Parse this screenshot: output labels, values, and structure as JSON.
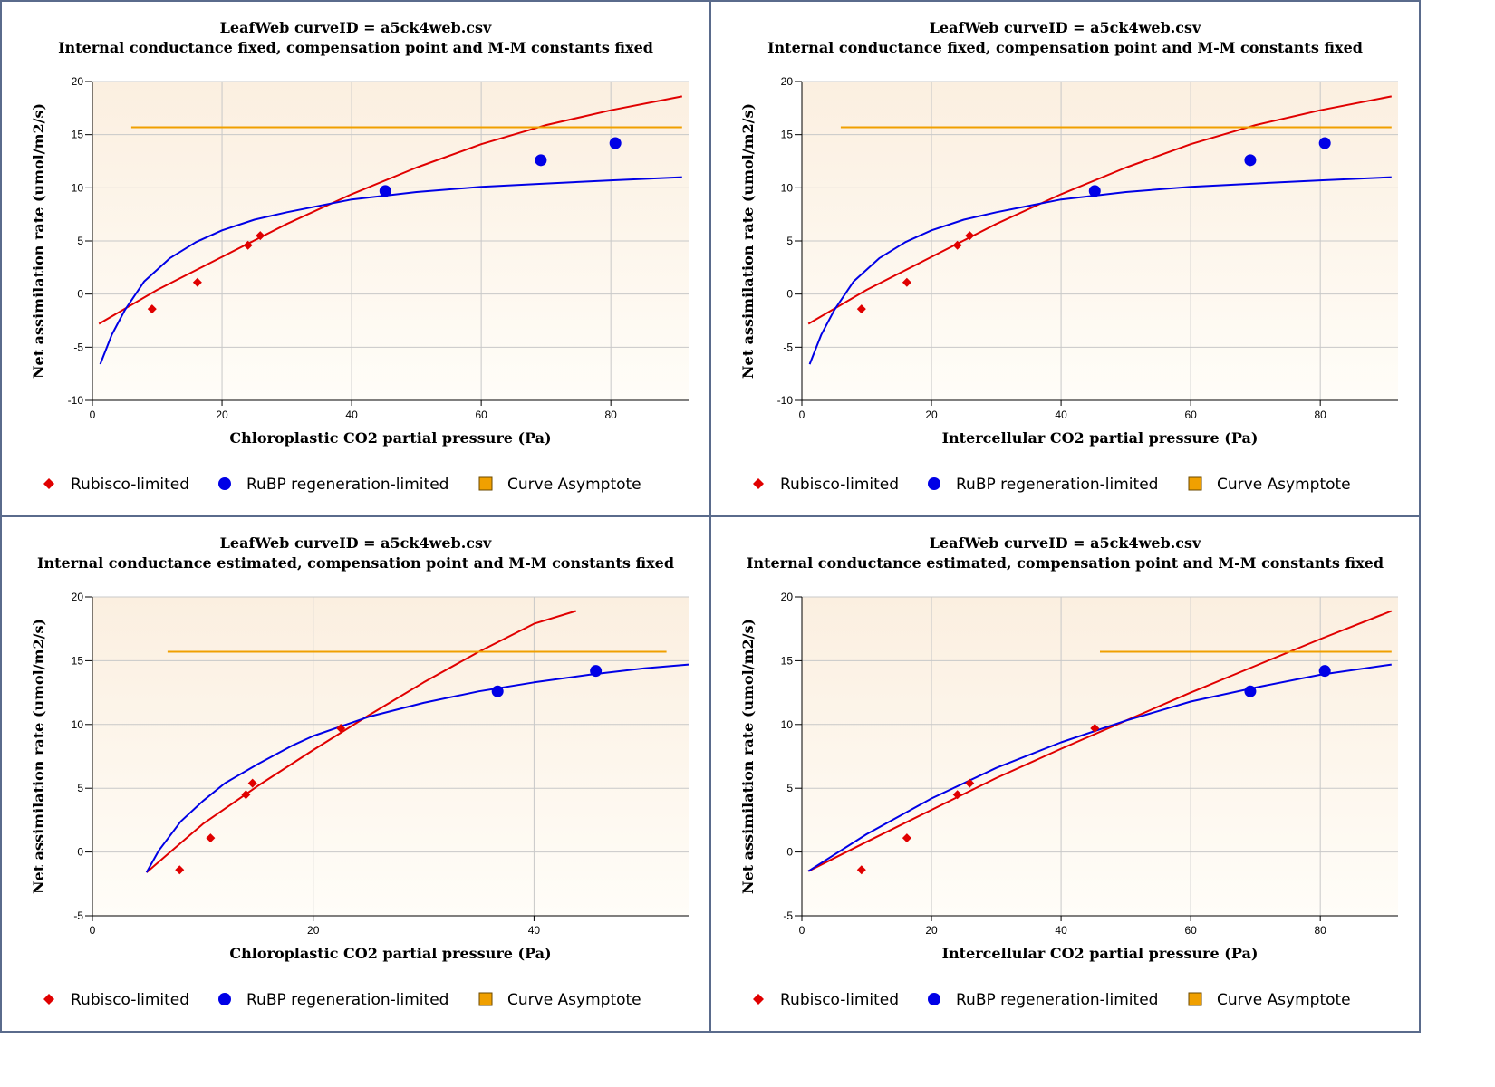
{
  "colors": {
    "rubisco": "#e00000",
    "rubp": "#0000e6",
    "asymptote": "#f0a000",
    "plot_bg_top": "#fbefe0",
    "plot_bg_bottom": "#fffdf8",
    "grid": "#c8c8c8",
    "panel_border": "#5a6b8c"
  },
  "legend": {
    "rubisco_label": "Rubisco-limited",
    "rubp_label": "RuBP regeneration-limited",
    "asymptote_label": "Curve Asymptote",
    "rubisco_marker": "diamond",
    "rubp_marker": "circle",
    "asymptote_marker": "square"
  },
  "chart_data": [
    {
      "type": "scatter",
      "title": "LeafWeb curveID = a5ck4web.csv",
      "subtitle": "Internal conductance fixed, compensation point and M-M constants fixed",
      "xlabel": "Chloroplastic CO2 partial pressure (Pa)",
      "ylabel": "Net assimilation rate (umol/m2/s)",
      "xlim": [
        0,
        92
      ],
      "ylim": [
        -10,
        20
      ],
      "xticks": [
        0,
        20,
        40,
        60,
        80
      ],
      "yticks": [
        -10,
        -5,
        0,
        5,
        10,
        15,
        20
      ],
      "grid": true,
      "legend_position": "bottom",
      "series": [
        {
          "name": "Rubisco-limited",
          "kind": "points",
          "marker": "diamond",
          "x": [
            9.2,
            16.2,
            24.0,
            25.9
          ],
          "y": [
            -1.4,
            1.1,
            4.6,
            5.5
          ]
        },
        {
          "name": "RuBP regeneration-limited",
          "kind": "points",
          "marker": "circle",
          "x": [
            45.2,
            69.2,
            80.7
          ],
          "y": [
            9.7,
            12.6,
            14.2
          ]
        },
        {
          "kind": "line",
          "color": "rubisco",
          "x": [
            1,
            10,
            20,
            30,
            40,
            50,
            60,
            70,
            80,
            91
          ],
          "y": [
            -2.8,
            0.4,
            3.5,
            6.6,
            9.4,
            11.9,
            14.1,
            15.9,
            17.3,
            18.6
          ]
        },
        {
          "kind": "line",
          "color": "rubp",
          "x": [
            1.2,
            3,
            5,
            8,
            12,
            16,
            20,
            25,
            30,
            40,
            50,
            60,
            70,
            80,
            91
          ],
          "y": [
            -6.6,
            -3.8,
            -1.5,
            1.2,
            3.4,
            4.9,
            6.0,
            7.0,
            7.7,
            8.9,
            9.6,
            10.1,
            10.4,
            10.7,
            11.0
          ]
        },
        {
          "name": "Curve Asymptote",
          "kind": "line",
          "color": "asymptote",
          "x": [
            6,
            91
          ],
          "y": [
            15.7,
            15.7
          ]
        }
      ]
    },
    {
      "type": "scatter",
      "title": "LeafWeb curveID = a5ck4web.csv",
      "subtitle": "Internal conductance fixed, compensation point and M-M constants fixed",
      "xlabel": "Intercellular CO2 partial pressure (Pa)",
      "ylabel": "Net assimilation rate (umol/m2/s)",
      "xlim": [
        0,
        92
      ],
      "ylim": [
        -10,
        20
      ],
      "xticks": [
        0,
        20,
        40,
        60,
        80
      ],
      "yticks": [
        -10,
        -5,
        0,
        5,
        10,
        15,
        20
      ],
      "grid": true,
      "legend_position": "bottom",
      "series": [
        {
          "name": "Rubisco-limited",
          "kind": "points",
          "marker": "diamond",
          "x": [
            9.2,
            16.2,
            24.0,
            25.9
          ],
          "y": [
            -1.4,
            1.1,
            4.6,
            5.5
          ]
        },
        {
          "name": "RuBP regeneration-limited",
          "kind": "points",
          "marker": "circle",
          "x": [
            45.2,
            69.2,
            80.7
          ],
          "y": [
            9.7,
            12.6,
            14.2
          ]
        },
        {
          "kind": "line",
          "color": "rubisco",
          "x": [
            1,
            10,
            20,
            30,
            40,
            50,
            60,
            70,
            80,
            91
          ],
          "y": [
            -2.8,
            0.4,
            3.5,
            6.6,
            9.4,
            11.9,
            14.1,
            15.9,
            17.3,
            18.6
          ]
        },
        {
          "kind": "line",
          "color": "rubp",
          "x": [
            1.2,
            3,
            5,
            8,
            12,
            16,
            20,
            25,
            30,
            40,
            50,
            60,
            70,
            80,
            91
          ],
          "y": [
            -6.6,
            -3.8,
            -1.5,
            1.2,
            3.4,
            4.9,
            6.0,
            7.0,
            7.7,
            8.9,
            9.6,
            10.1,
            10.4,
            10.7,
            11.0
          ]
        },
        {
          "name": "Curve Asymptote",
          "kind": "line",
          "color": "asymptote",
          "x": [
            6,
            91
          ],
          "y": [
            15.7,
            15.7
          ]
        }
      ]
    },
    {
      "type": "scatter",
      "title": "LeafWeb curveID = a5ck4web.csv",
      "subtitle": "Internal conductance estimated, compensation point and M-M constants fixed",
      "xlabel": "Chloroplastic CO2 partial pressure (Pa)",
      "ylabel": "Net assimilation rate (umol/m2/s)",
      "xlim": [
        0,
        54
      ],
      "ylim": [
        -5,
        20
      ],
      "xticks": [
        0,
        20,
        40
      ],
      "yticks": [
        -5,
        0,
        5,
        10,
        15,
        20
      ],
      "grid": true,
      "legend_position": "bottom",
      "series": [
        {
          "name": "Rubisco-limited",
          "kind": "points",
          "marker": "diamond",
          "x": [
            7.9,
            10.7,
            13.9,
            14.5,
            22.5
          ],
          "y": [
            -1.4,
            1.1,
            4.5,
            5.4,
            9.7
          ]
        },
        {
          "name": "RuBP regeneration-limited",
          "kind": "points",
          "marker": "circle",
          "x": [
            36.7,
            45.6
          ],
          "y": [
            12.6,
            14.2
          ]
        },
        {
          "kind": "line",
          "color": "rubisco",
          "x": [
            4.9,
            10,
            15,
            20,
            25,
            30,
            35,
            40,
            43.8
          ],
          "y": [
            -1.6,
            2.2,
            5.2,
            8.0,
            10.7,
            13.3,
            15.7,
            17.9,
            18.9
          ]
        },
        {
          "kind": "line",
          "color": "rubp",
          "x": [
            4.9,
            6,
            8,
            10,
            12,
            15,
            18,
            20,
            25,
            30,
            35,
            40,
            45,
            50,
            54
          ],
          "y": [
            -1.6,
            0.1,
            2.4,
            4.0,
            5.4,
            6.9,
            8.3,
            9.1,
            10.6,
            11.7,
            12.6,
            13.3,
            13.9,
            14.4,
            14.7
          ]
        },
        {
          "name": "Curve Asymptote",
          "kind": "line",
          "color": "asymptote",
          "x": [
            6.8,
            52
          ],
          "y": [
            15.7,
            15.7
          ]
        }
      ]
    },
    {
      "type": "scatter",
      "title": "LeafWeb curveID = a5ck4web.csv",
      "subtitle": "Internal conductance estimated, compensation point and M-M constants fixed",
      "xlabel": "Intercellular CO2 partial pressure (Pa)",
      "ylabel": "Net assimilation rate (umol/m2/s)",
      "xlim": [
        0,
        92
      ],
      "ylim": [
        -5,
        20
      ],
      "xticks": [
        0,
        20,
        40,
        60,
        80
      ],
      "yticks": [
        -5,
        0,
        5,
        10,
        15,
        20
      ],
      "grid": true,
      "legend_position": "bottom",
      "series": [
        {
          "name": "Rubisco-limited",
          "kind": "points",
          "marker": "diamond",
          "x": [
            9.2,
            16.2,
            24.0,
            25.9,
            45.2
          ],
          "y": [
            -1.4,
            1.1,
            4.5,
            5.4,
            9.7
          ]
        },
        {
          "name": "RuBP regeneration-limited",
          "kind": "points",
          "marker": "circle",
          "x": [
            69.2,
            80.7
          ],
          "y": [
            12.6,
            14.2
          ]
        },
        {
          "kind": "line",
          "color": "rubisco",
          "x": [
            1,
            10,
            20,
            30,
            40,
            50,
            60,
            70,
            80,
            91
          ],
          "y": [
            -1.5,
            0.8,
            3.3,
            5.8,
            8.1,
            10.3,
            12.5,
            14.6,
            16.7,
            18.9
          ]
        },
        {
          "kind": "line",
          "color": "rubp",
          "x": [
            1,
            10,
            20,
            30,
            40,
            50,
            60,
            70,
            80,
            91
          ],
          "y": [
            -1.5,
            1.4,
            4.2,
            6.6,
            8.6,
            10.3,
            11.8,
            12.9,
            13.9,
            14.7
          ]
        },
        {
          "name": "Curve Asymptote",
          "kind": "line",
          "color": "asymptote",
          "x": [
            46,
            91
          ],
          "y": [
            15.7,
            15.7
          ]
        }
      ]
    }
  ]
}
